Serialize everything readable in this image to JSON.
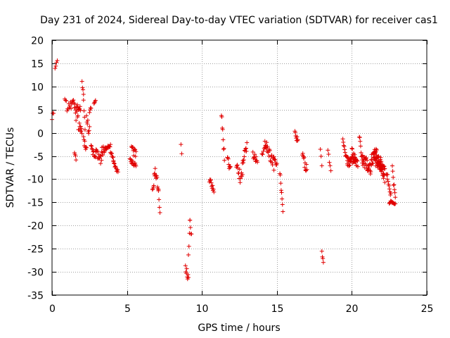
{
  "chart_data": {
    "type": "scatter",
    "title": "Day 231 of 2024, Sidereal Day-to-day VTEC variation (SDTVAR) for receiver cas1",
    "xlabel": "GPS time / hours",
    "ylabel": "SDTVAR / TECUs",
    "xlim": [
      0,
      25
    ],
    "ylim": [
      -35,
      20
    ],
    "xticks": [
      "0",
      "5",
      "10",
      "15",
      "20",
      "25"
    ],
    "yticks": [
      "20",
      "15",
      "10",
      "5",
      "0",
      "-5",
      "-10",
      "-15",
      "-20",
      "-25",
      "-30",
      "-35"
    ],
    "grid": true,
    "marker": "plus",
    "color": "#e00000",
    "series": [
      {
        "name": "SDTVAR",
        "segments": [
          [
            0.0,
            3.0,
            0.1,
            4.5,
            0.05,
            0.8
          ],
          [
            0.2,
            14.0,
            0.35,
            15.5,
            0.05,
            0.5
          ],
          [
            0.85,
            7.0,
            0.95,
            7.0,
            0.05,
            0.3
          ],
          [
            1.0,
            5.5,
            1.5,
            6.5,
            0.04,
            0.8
          ],
          [
            1.5,
            6.0,
            1.6,
            3.0,
            0.03,
            0.6
          ],
          [
            1.5,
            -4.0,
            1.6,
            -6.0,
            0.03,
            0.4
          ],
          [
            1.6,
            5.5,
            1.9,
            5.0,
            0.03,
            0.8
          ],
          [
            1.7,
            3.0,
            2.0,
            -1.0,
            0.03,
            1.5
          ],
          [
            2.0,
            11.0,
            2.1,
            8.0,
            0.03,
            0.5
          ],
          [
            2.1,
            7.0,
            2.2,
            1.0,
            0.03,
            1.0
          ],
          [
            2.1,
            -1.5,
            2.3,
            -3.5,
            0.03,
            0.8
          ],
          [
            2.3,
            2.5,
            2.5,
            0.5,
            0.03,
            1.5
          ],
          [
            2.5,
            4.0,
            2.6,
            5.5,
            0.03,
            0.5
          ],
          [
            2.6,
            -3.5,
            2.9,
            -5.0,
            0.03,
            1.0
          ],
          [
            2.8,
            6.5,
            2.9,
            7.5,
            0.03,
            0.5
          ],
          [
            2.9,
            -4.0,
            3.3,
            -6.0,
            0.03,
            1.0
          ],
          [
            3.3,
            -4.0,
            3.6,
            -3.5,
            0.03,
            1.0
          ],
          [
            3.6,
            -3.0,
            3.9,
            -3.0,
            0.03,
            0.5
          ],
          [
            3.9,
            -4.0,
            4.1,
            -6.0,
            0.03,
            0.5
          ],
          [
            4.1,
            -6.5,
            4.4,
            -8.5,
            0.03,
            0.5
          ],
          [
            5.2,
            -6.0,
            5.6,
            -7.0,
            0.03,
            0.5
          ],
          [
            5.3,
            -3.0,
            5.6,
            -5.0,
            0.03,
            1.0
          ],
          [
            6.7,
            -13.0,
            6.85,
            -9.0,
            0.03,
            1.0
          ],
          [
            6.85,
            -8.0,
            7.1,
            -12.0,
            0.03,
            1.0
          ],
          [
            7.1,
            -13.0,
            7.2,
            -17.0,
            0.03,
            0.5
          ],
          [
            8.6,
            -2.5,
            8.65,
            -4.5,
            0.05,
            0.0
          ],
          [
            8.9,
            -28.5,
            9.1,
            -32.0,
            0.03,
            1.0
          ],
          [
            9.1,
            -26.0,
            9.2,
            -19.5,
            0.03,
            1.0
          ],
          [
            9.2,
            -19.5,
            9.3,
            -22.0,
            0.03,
            0.8
          ],
          [
            10.5,
            -10.0,
            10.8,
            -13.0,
            0.03,
            0.8
          ],
          [
            11.3,
            4.5,
            11.5,
            -5.5,
            0.03,
            1.0
          ],
          [
            11.7,
            -5.5,
            11.9,
            -8.0,
            0.03,
            0.8
          ],
          [
            12.3,
            -8.0,
            12.7,
            -10.0,
            0.03,
            1.5
          ],
          [
            12.7,
            -6.5,
            13.0,
            -3.0,
            0.03,
            1.0
          ],
          [
            13.4,
            -4.5,
            13.7,
            -6.5,
            0.03,
            1.0
          ],
          [
            14.0,
            -4.0,
            14.3,
            -3.5,
            0.05,
            0.8
          ],
          [
            14.2,
            -1.5,
            14.8,
            -7.0,
            0.03,
            1.2
          ],
          [
            14.8,
            -5.5,
            15.0,
            -7.0,
            0.03,
            0.5
          ],
          [
            15.2,
            -8.5,
            15.4,
            -17.0,
            0.03,
            0.8
          ],
          [
            16.2,
            0.0,
            16.4,
            -2.0,
            0.03,
            0.6
          ],
          [
            16.7,
            -5.0,
            17.0,
            -8.0,
            0.03,
            1.0
          ],
          [
            17.9,
            -3.5,
            18.0,
            -7.5,
            0.05,
            0.5
          ],
          [
            18.0,
            -25.5,
            18.1,
            -28.0,
            0.03,
            0.5
          ],
          [
            18.4,
            -4.0,
            18.6,
            -8.0,
            0.05,
            0.5
          ],
          [
            19.4,
            -1.5,
            19.7,
            -6.0,
            0.03,
            0.8
          ],
          [
            19.7,
            -6.0,
            20.3,
            -6.5,
            0.02,
            1.2
          ],
          [
            20.0,
            -4.0,
            20.4,
            -7.0,
            0.03,
            0.8
          ],
          [
            20.5,
            -1.0,
            20.7,
            -6.0,
            0.03,
            0.8
          ],
          [
            20.7,
            -6.0,
            21.3,
            -8.0,
            0.02,
            1.5
          ],
          [
            21.3,
            -5.0,
            22.0,
            -7.0,
            0.02,
            1.5
          ],
          [
            21.5,
            -4.0,
            22.2,
            -8.5,
            0.02,
            1.5
          ],
          [
            21.9,
            -7.5,
            22.2,
            -10.0,
            0.03,
            1.0
          ],
          [
            22.3,
            -8.0,
            22.6,
            -13.0,
            0.03,
            1.0
          ],
          [
            22.5,
            -15.0,
            22.9,
            -15.5,
            0.03,
            0.5
          ],
          [
            22.7,
            -8.0,
            22.9,
            -14.0,
            0.03,
            1.0
          ]
        ]
      }
    ]
  }
}
